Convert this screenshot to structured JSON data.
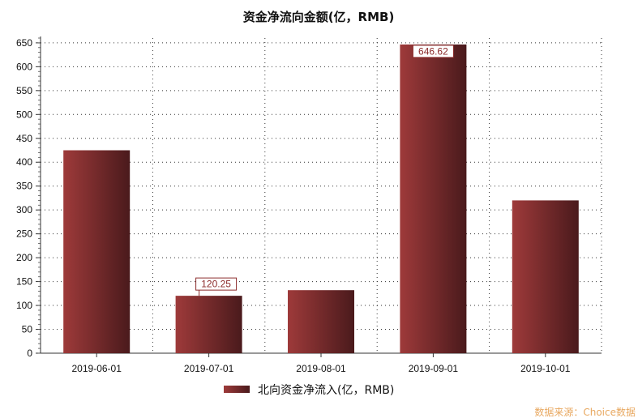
{
  "chart_data": {
    "type": "bar",
    "title": "资金净流向金额(亿，RMB)",
    "categories": [
      "2019-06-01",
      "2019-07-01",
      "2019-08-01",
      "2019-09-01",
      "2019-10-01"
    ],
    "series": [
      {
        "name": "北向资金净流入(亿，RMB)",
        "values": [
          425,
          120.25,
          132,
          646.62,
          320
        ]
      }
    ],
    "ylim": [
      0,
      660
    ],
    "yticks": [
      0,
      50,
      100,
      150,
      200,
      250,
      300,
      350,
      400,
      450,
      500,
      550,
      600,
      650
    ],
    "ytick_labels": [
      "0",
      "50",
      "100",
      "150",
      "200",
      "250",
      "300",
      "350",
      "400",
      "450",
      "500",
      "550",
      "600",
      "650"
    ],
    "annotations": [
      {
        "category": "2019-07-01",
        "label": "120.25"
      },
      {
        "category": "2019-09-01",
        "label": "646.62"
      }
    ],
    "grid": true,
    "legend_position": "bottom",
    "colors": {
      "bar_light": "#9e3a3a",
      "bar_dark": "#4a1a1c",
      "callout": "#8b2a2a"
    }
  },
  "source_note": "数据来源：Choice数据"
}
